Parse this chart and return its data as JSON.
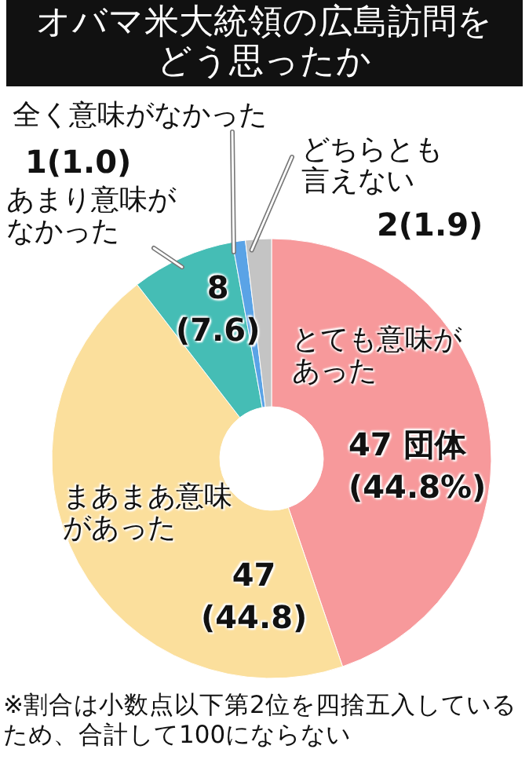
{
  "chart_data": {
    "type": "donut",
    "title": "オバマ米大統領の広島訪問をどう思ったか",
    "categories": [
      "とても意味があった",
      "まあまあ意味があった",
      "あまり意味がなかった",
      "全く意味がなかった",
      "どちらとも言えない"
    ],
    "values": [
      47,
      47,
      8,
      1,
      2
    ],
    "colors": [
      "#f7999b",
      "#fbdf9c",
      "#45bdb5",
      "#5aa3e6",
      "#c4c4c4"
    ],
    "value_labels": [
      "47 団体\n(44.8%)",
      "47\n(44.8)",
      "8\n(7.6)",
      "1(1.0)",
      "2(1.9)"
    ],
    "annotations": [
      "※割合は小数点以下第2位を四捨五入しているため、合計して100にならない"
    ],
    "legend": false
  }
}
